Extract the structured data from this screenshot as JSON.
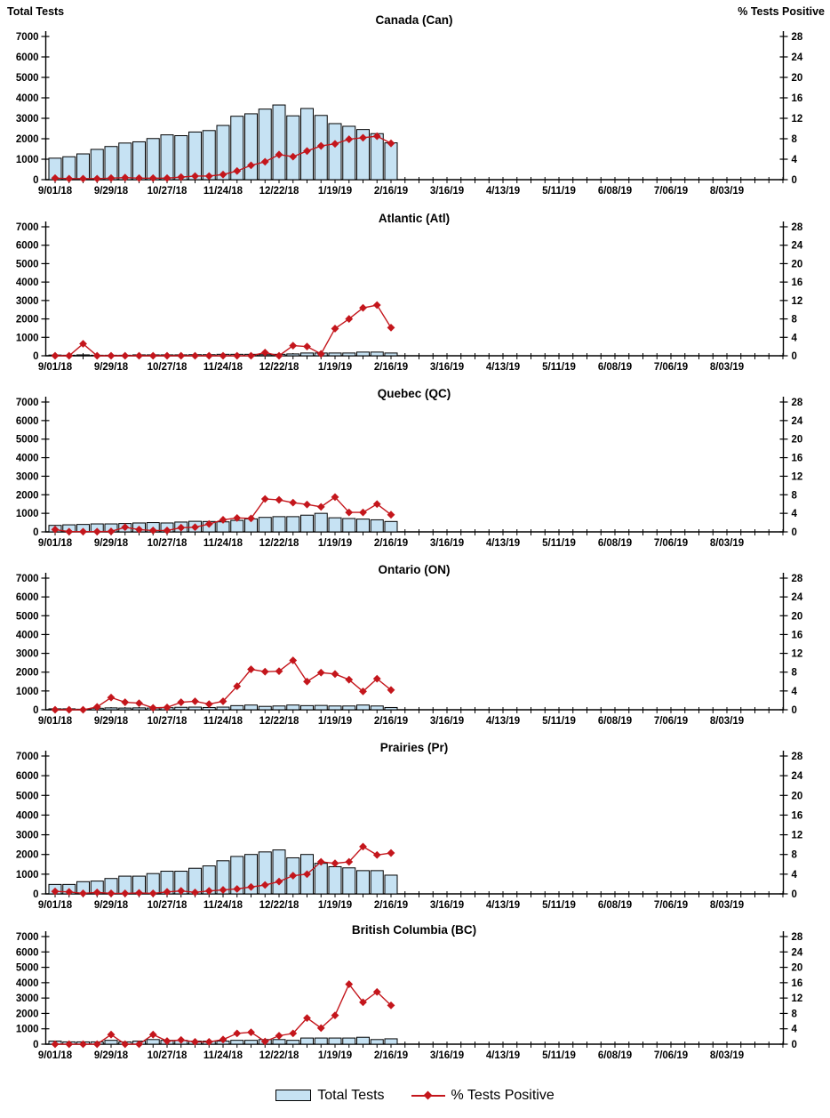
{
  "axes": {
    "left_label": "Total Tests",
    "right_label": "% Tests Positive",
    "left_ticks": [
      0,
      1000,
      2000,
      3000,
      4000,
      5000,
      6000,
      7000
    ],
    "left_max": 7000,
    "right_ticks": [
      0,
      4,
      8,
      12,
      16,
      20,
      24,
      28
    ],
    "right_max": 28,
    "x_tick_labels": [
      "9/01/18",
      "9/29/18",
      "10/27/18",
      "11/24/18",
      "12/22/18",
      "1/19/19",
      "2/16/19",
      "3/16/19",
      "4/13/19",
      "5/11/19",
      "6/08/19",
      "7/06/19",
      "8/03/19"
    ],
    "weeks_shown": 53,
    "label_every_n_weeks": 4
  },
  "colors": {
    "bar_fill": "#C6E2F3",
    "bar_border": "#000000",
    "line": "#C4161C",
    "text": "#000000",
    "axis": "#000000",
    "background": "#FFFFFF"
  },
  "legend": {
    "bar_label": "Total Tests",
    "line_label": "% Tests Positive"
  },
  "categories_weeks": [
    "9/01/18",
    "9/08/18",
    "9/15/18",
    "9/22/18",
    "9/29/18",
    "10/06/18",
    "10/13/18",
    "10/20/18",
    "10/27/18",
    "11/03/18",
    "11/10/18",
    "11/17/18",
    "11/24/18",
    "12/01/18",
    "12/08/18",
    "12/15/18",
    "12/22/18",
    "12/29/18",
    "1/05/19",
    "1/12/19",
    "1/19/19",
    "1/26/19",
    "2/02/19",
    "2/09/19",
    "2/16/19"
  ],
  "chart_data": [
    {
      "type": "bar+line",
      "title": "Canada (Can)",
      "xlabel": "",
      "ylabel_left": "Total Tests",
      "ylabel_right": "% Tests Positive",
      "ylim_left": [
        0,
        7000
      ],
      "ylim_right": [
        0,
        28
      ],
      "legend_position": "bottom-shared",
      "grid": false,
      "series": [
        {
          "name": "Total Tests",
          "type": "bar",
          "axis": "left",
          "values": [
            1050,
            1120,
            1260,
            1480,
            1620,
            1790,
            1850,
            2010,
            2190,
            2150,
            2330,
            2400,
            2650,
            3100,
            3220,
            3450,
            3650,
            3120,
            3480,
            3140,
            2740,
            2610,
            2450,
            2250,
            1800
          ]
        },
        {
          "name": "% Tests Positive",
          "type": "line",
          "axis": "right",
          "values": [
            0.3,
            0.2,
            0.2,
            0.2,
            0.3,
            0.4,
            0.3,
            0.3,
            0.3,
            0.5,
            0.7,
            0.7,
            1.0,
            1.7,
            2.8,
            3.5,
            4.9,
            4.5,
            5.6,
            6.6,
            7.0,
            7.9,
            8.2,
            8.5,
            7.1
          ]
        }
      ]
    },
    {
      "type": "bar+line",
      "title": "Atlantic (Atl)",
      "ylim_left": [
        0,
        7000
      ],
      "ylim_right": [
        0,
        28
      ],
      "grid": false,
      "series": [
        {
          "name": "Total Tests",
          "type": "bar",
          "axis": "left",
          "values": [
            40,
            30,
            50,
            30,
            30,
            30,
            50,
            50,
            50,
            50,
            60,
            60,
            80,
            80,
            80,
            60,
            80,
            100,
            150,
            150,
            150,
            150,
            200,
            200,
            150
          ]
        },
        {
          "name": "% Tests Positive",
          "type": "line",
          "axis": "right",
          "values": [
            0,
            0,
            2.6,
            0,
            0,
            0,
            0,
            0,
            0,
            0,
            0,
            0,
            0,
            0,
            0,
            0.7,
            0,
            2.2,
            2.0,
            0.4,
            5.9,
            8.0,
            10.4,
            11.0,
            6.1
          ]
        }
      ]
    },
    {
      "type": "bar+line",
      "title": "Quebec (QC)",
      "ylim_left": [
        0,
        7000
      ],
      "ylim_right": [
        0,
        28
      ],
      "grid": false,
      "series": [
        {
          "name": "Total Tests",
          "type": "bar",
          "axis": "left",
          "values": [
            350,
            380,
            400,
            430,
            430,
            450,
            480,
            500,
            480,
            530,
            570,
            560,
            540,
            620,
            700,
            780,
            820,
            820,
            900,
            1000,
            760,
            720,
            690,
            650,
            560
          ]
        },
        {
          "name": "% Tests Positive",
          "type": "line",
          "axis": "right",
          "values": [
            0.5,
            0.05,
            0.05,
            0.05,
            0.1,
            1.0,
            0.5,
            0.3,
            0.3,
            0.9,
            1.0,
            1.7,
            2.6,
            3.0,
            2.9,
            7.1,
            6.9,
            6.3,
            5.9,
            5.4,
            7.5,
            4.2,
            4.2,
            6.0,
            3.7
          ]
        }
      ]
    },
    {
      "type": "bar+line",
      "title": "Ontario (ON)",
      "ylim_left": [
        0,
        7000
      ],
      "ylim_right": [
        0,
        28
      ],
      "grid": false,
      "series": [
        {
          "name": "Total Tests",
          "type": "bar",
          "axis": "left",
          "values": [
            50,
            50,
            30,
            80,
            100,
            90,
            100,
            90,
            110,
            130,
            140,
            120,
            140,
            220,
            250,
            180,
            200,
            250,
            220,
            230,
            200,
            200,
            250,
            200,
            120
          ]
        },
        {
          "name": "% Tests Positive",
          "type": "line",
          "axis": "right",
          "values": [
            0,
            0,
            0,
            0.6,
            2.6,
            1.6,
            1.4,
            0.4,
            0.5,
            1.6,
            1.8,
            1.2,
            1.8,
            5.0,
            8.6,
            8.1,
            8.2,
            10.5,
            6.0,
            7.9,
            7.6,
            6.4,
            3.9,
            6.6,
            4.2
          ]
        }
      ]
    },
    {
      "type": "bar+line",
      "title": "Prairies (Pr)",
      "ylim_left": [
        0,
        7000
      ],
      "ylim_right": [
        0,
        28
      ],
      "grid": false,
      "series": [
        {
          "name": "Total Tests",
          "type": "bar",
          "axis": "left",
          "values": [
            480,
            480,
            620,
            650,
            780,
            900,
            900,
            1030,
            1150,
            1150,
            1300,
            1420,
            1680,
            1900,
            2000,
            2130,
            2230,
            1830,
            2000,
            1550,
            1380,
            1320,
            1180,
            1180,
            950
          ]
        },
        {
          "name": "% Tests Positive",
          "type": "line",
          "axis": "right",
          "values": [
            0.5,
            0.4,
            0.1,
            0.3,
            0.1,
            0.1,
            0.2,
            0.1,
            0.4,
            0.6,
            0.3,
            0.6,
            0.8,
            1.0,
            1.4,
            1.8,
            2.5,
            3.7,
            4.0,
            6.5,
            6.2,
            6.5,
            9.6,
            7.9,
            8.3
          ]
        }
      ]
    },
    {
      "type": "bar+line",
      "title": "British Columbia (BC)",
      "ylim_left": [
        0,
        7000
      ],
      "ylim_right": [
        0,
        28
      ],
      "grid": false,
      "series": [
        {
          "name": "Total Tests",
          "type": "bar",
          "axis": "left",
          "values": [
            200,
            150,
            150,
            150,
            250,
            150,
            200,
            300,
            250,
            250,
            200,
            200,
            200,
            250,
            250,
            300,
            300,
            250,
            400,
            400,
            400,
            400,
            450,
            300,
            350
          ]
        },
        {
          "name": "% Tests Positive",
          "type": "line",
          "axis": "right",
          "values": [
            0,
            0,
            0,
            0,
            2.5,
            0,
            0,
            2.5,
            0.8,
            1.1,
            0.6,
            0.6,
            1.2,
            2.8,
            3.1,
            0.7,
            2.2,
            2.8,
            6.8,
            4.2,
            7.5,
            15.6,
            10.9,
            13.6,
            10.1
          ]
        }
      ]
    }
  ]
}
